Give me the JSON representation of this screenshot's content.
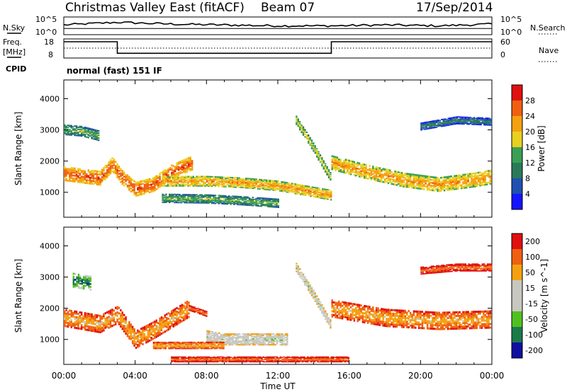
{
  "header": {
    "station": "Christmas Valley East (fitACF)",
    "beam": "Beam 07",
    "date": "17/Sep/2014"
  },
  "panel_labels": {
    "nsky": "N.Sky",
    "nsearch": "N.Search",
    "freq": "Freq.",
    "freq_unit": "[MHz]",
    "nave": "Nave",
    "cpid": "CPID",
    "cpid_value": "normal (fast) 151 IF"
  },
  "noise_ticks": [
    "10^5",
    "10^0"
  ],
  "freq_ticks": [
    "18",
    "8"
  ],
  "nave_ticks": [
    "60",
    "0"
  ],
  "time_ticks": [
    "00:00",
    "04:00",
    "08:00",
    "12:00",
    "16:00",
    "20:00",
    "00:00"
  ],
  "xlabel": "Time UT",
  "colors": {
    "power": [
      "#1515ff",
      "#2050b0",
      "#2a7a5a",
      "#3aa055",
      "#e8d020",
      "#f5a010",
      "#f06010",
      "#e01010"
    ],
    "velocity": [
      "#e01010",
      "#f06010",
      "#f5a010",
      "#c8c8c0",
      "#c8c8c0",
      "#50c020",
      "#1a7a4a",
      "#1010a0"
    ]
  },
  "chart_data": [
    {
      "type": "line",
      "name": "noise",
      "x": [
        0,
        3,
        6,
        9,
        12,
        15,
        18,
        21,
        24
      ],
      "series": [
        {
          "values": [
            0.55,
            0.7,
            0.6,
            0.55,
            0.5,
            0.5,
            0.55,
            0.5,
            0.6
          ]
        },
        {
          "values": [
            0.35,
            0.35,
            0.35,
            0.35,
            0.35,
            0.35,
            0.35,
            0.35,
            0.35
          ]
        }
      ],
      "xlim": [
        0,
        24
      ]
    },
    {
      "type": "line",
      "name": "frequency",
      "x": [
        0,
        3,
        3,
        15,
        15,
        24
      ],
      "series": [
        {
          "values": [
            16.5,
            16.5,
            10.5,
            10.5,
            16.5,
            16.5
          ]
        }
      ],
      "ylim": [
        8,
        18
      ],
      "xlim": [
        0,
        24
      ]
    },
    {
      "type": "heatmap",
      "title": "Power",
      "ylabel": "Slant Range [km]",
      "yticks": [
        "1000",
        "2000",
        "3000",
        "4000"
      ],
      "xlim": [
        0,
        24
      ],
      "ylim": [
        200,
        4600
      ],
      "colorbar_label": "Power [dB]",
      "colorbar_ticks": [
        "4",
        "8",
        "12",
        "16",
        "20",
        "24",
        "28"
      ],
      "bands": [
        {
          "x": [
            0,
            2,
            2.7,
            3.2,
            4,
            5,
            6,
            7.2
          ],
          "y": [
            1600,
            1450,
            1900,
            1500,
            1100,
            1250,
            1650,
            1950
          ],
          "w": 420,
          "level": 7
        },
        {
          "x": [
            5.5,
            8,
            10,
            12,
            13.5,
            15
          ],
          "y": [
            1350,
            1350,
            1300,
            1200,
            1050,
            900
          ],
          "w": 300,
          "level": 6
        },
        {
          "x": [
            5.5,
            8,
            10,
            12
          ],
          "y": [
            800,
            780,
            720,
            640
          ],
          "w": 260,
          "level": 4
        },
        {
          "x": [
            13,
            14,
            15
          ],
          "y": [
            3300,
            2400,
            1400
          ],
          "w": 260,
          "level": 5
        },
        {
          "x": [
            15,
            17,
            19,
            21,
            23,
            24
          ],
          "y": [
            1950,
            1650,
            1400,
            1250,
            1400,
            1500
          ],
          "w": 420,
          "level": 6
        },
        {
          "x": [
            0,
            1,
            2
          ],
          "y": [
            3000,
            2950,
            2800
          ],
          "w": 300,
          "level": 4
        },
        {
          "x": [
            20,
            22,
            24
          ],
          "y": [
            3100,
            3300,
            3250
          ],
          "w": 220,
          "level": 3
        }
      ]
    },
    {
      "type": "heatmap",
      "title": "Velocity",
      "ylabel": "Slant Range [km]",
      "yticks": [
        "1000",
        "2000",
        "3000",
        "4000"
      ],
      "xlim": [
        0,
        24
      ],
      "ylim": [
        200,
        4600
      ],
      "colorbar_label": "Velocity [m s^-1]",
      "colorbar_ticks": [
        "200",
        "100",
        "50",
        "15",
        "-15",
        "-50",
        "-100",
        "-200"
      ],
      "bands": [
        {
          "x": [
            0,
            2,
            3,
            4,
            5,
            7
          ],
          "y": [
            1700,
            1500,
            1800,
            1000,
            1300,
            2000
          ],
          "w": 520,
          "level": 3
        },
        {
          "x": [
            0.5,
            1.5
          ],
          "y": [
            2900,
            2800
          ],
          "w": 420,
          "level": 7
        },
        {
          "x": [
            8,
            9,
            10,
            11,
            12.5
          ],
          "y": [
            1100,
            1000,
            1000,
            1000,
            1000
          ],
          "w": 340,
          "level": 5
        },
        {
          "x": [
            13,
            14,
            15
          ],
          "y": [
            3300,
            2400,
            1400
          ],
          "w": 260,
          "level": 5
        },
        {
          "x": [
            5,
            7,
            9
          ],
          "y": [
            800,
            800,
            800
          ],
          "w": 200,
          "level": 3
        },
        {
          "x": [
            15,
            18,
            21,
            24
          ],
          "y": [
            2000,
            1700,
            1600,
            1650
          ],
          "w": 520,
          "level": 3
        },
        {
          "x": [
            7,
            8
          ],
          "y": [
            2000,
            1800
          ],
          "w": 160,
          "level": 2
        },
        {
          "x": [
            6,
            10,
            14,
            16
          ],
          "y": [
            350,
            350,
            350,
            350
          ],
          "w": 160,
          "level": 2
        },
        {
          "x": [
            20,
            22,
            24
          ],
          "y": [
            3200,
            3300,
            3300
          ],
          "w": 220,
          "level": 2
        }
      ]
    }
  ]
}
